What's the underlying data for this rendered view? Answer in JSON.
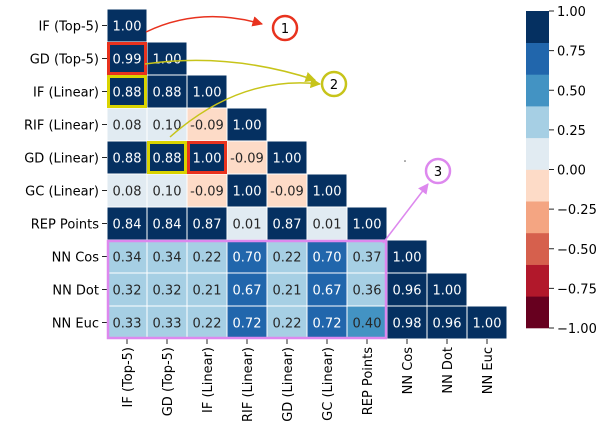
{
  "chart_data": {
    "type": "heatmap",
    "title": "",
    "xlabel": "",
    "ylabel": "",
    "rows": [
      "IF (Top-5)",
      "GD (Top-5)",
      "IF (Linear)",
      "RIF (Linear)",
      "GD (Linear)",
      "GC (Linear)",
      "REP Points",
      "NN Cos",
      "NN Dot",
      "NN Euc"
    ],
    "columns": [
      "IF (Top-5)",
      "GD (Top-5)",
      "IF (Linear)",
      "RIF (Linear)",
      "GD (Linear)",
      "GC (Linear)",
      "REP Points",
      "NN Cos",
      "NN Dot",
      "NN Euc"
    ],
    "values": [
      [
        1.0
      ],
      [
        0.99,
        1.0
      ],
      [
        0.88,
        0.88,
        1.0
      ],
      [
        0.08,
        0.1,
        -0.09,
        1.0
      ],
      [
        0.88,
        0.88,
        1.0,
        -0.09,
        1.0
      ],
      [
        0.08,
        0.1,
        -0.09,
        1.0,
        -0.09,
        1.0
      ],
      [
        0.84,
        0.84,
        0.87,
        0.01,
        0.87,
        0.01,
        1.0
      ],
      [
        0.34,
        0.34,
        0.22,
        0.7,
        0.22,
        0.7,
        0.37,
        1.0
      ],
      [
        0.32,
        0.32,
        0.21,
        0.67,
        0.21,
        0.67,
        0.36,
        0.96,
        1.0
      ],
      [
        0.33,
        0.33,
        0.22,
        0.72,
        0.22,
        0.72,
        0.4,
        0.98,
        0.96,
        1.0
      ]
    ],
    "colorbar": {
      "range": [
        -1.0,
        1.0
      ],
      "ticks": [
        "1.00",
        "0.75",
        "0.50",
        "0.25",
        "0.00",
        "−0.25",
        "−0.50",
        "−0.75",
        "−1.00"
      ],
      "bins": [
        "#67001f",
        "#b2182b",
        "#d6604d",
        "#f4a582",
        "#fddbc7",
        "#e1ebf2",
        "#a6cfe4",
        "#4393c3",
        "#2166ac",
        "#053061"
      ]
    },
    "annotations": {
      "markers": [
        "1",
        "2",
        "3"
      ],
      "marker_colors": [
        "#e8321e",
        "#c7c41a",
        "#dd88ee"
      ],
      "highlights": [
        {
          "marker": 0,
          "color": "#e8321e",
          "cells": [
            [
              1,
              0
            ],
            [
              4,
              2
            ]
          ]
        },
        {
          "marker": 1,
          "color": "#d9d300",
          "cells": [
            [
              2,
              0
            ],
            [
              4,
              1
            ]
          ]
        },
        {
          "marker": 2,
          "color": "#dd88ee",
          "box_rows": [
            7,
            9
          ],
          "box_cols": [
            0,
            6
          ]
        }
      ]
    }
  }
}
